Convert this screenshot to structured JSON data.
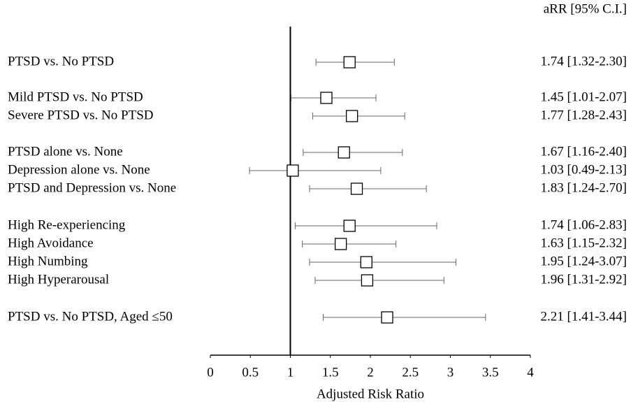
{
  "chart_data": {
    "type": "forest",
    "value_header": "aRR [95% C.I.]",
    "xlabel": "Adjusted Risk Ratio",
    "categories": [
      "PTSD vs. No PTSD",
      "Mild PTSD vs. No PTSD",
      "Severe PTSD vs. No PTSD",
      "PTSD alone vs. None",
      "Depression alone vs. None",
      "PTSD and Depression vs. None",
      "High Re-experiencing",
      "High Avoidance",
      "High Numbing",
      "High Hyperarousal",
      "PTSD vs. No PTSD, Aged ≤50"
    ],
    "values": [
      1.74,
      1.45,
      1.77,
      1.67,
      1.03,
      1.83,
      1.74,
      1.63,
      1.95,
      1.96,
      2.21
    ],
    "lower": [
      1.32,
      1.01,
      1.28,
      1.16,
      0.49,
      1.24,
      1.06,
      1.15,
      1.24,
      1.31,
      1.41
    ],
    "upper": [
      2.3,
      2.07,
      2.43,
      2.4,
      2.13,
      2.7,
      2.83,
      2.32,
      3.07,
      2.92,
      3.44
    ],
    "value_labels": [
      "1.74 [1.32-2.30]",
      "1.45 [1.01-2.07]",
      "1.77 [1.28-2.43]",
      "1.67 [1.16-2.40]",
      "1.03 [0.49-2.13]",
      "1.83 [1.24-2.70]",
      "1.74 [1.06-2.83]",
      "1.63 [1.15-2.32]",
      "1.95 [1.24-3.07]",
      "1.96 [1.31-2.92]",
      "2.21 [1.41-3.44]"
    ],
    "reference_line": 1,
    "xlim": [
      0,
      4
    ],
    "xticks": [
      0,
      0.5,
      1,
      1.5,
      2,
      2.5,
      3,
      3.5,
      4
    ]
  }
}
